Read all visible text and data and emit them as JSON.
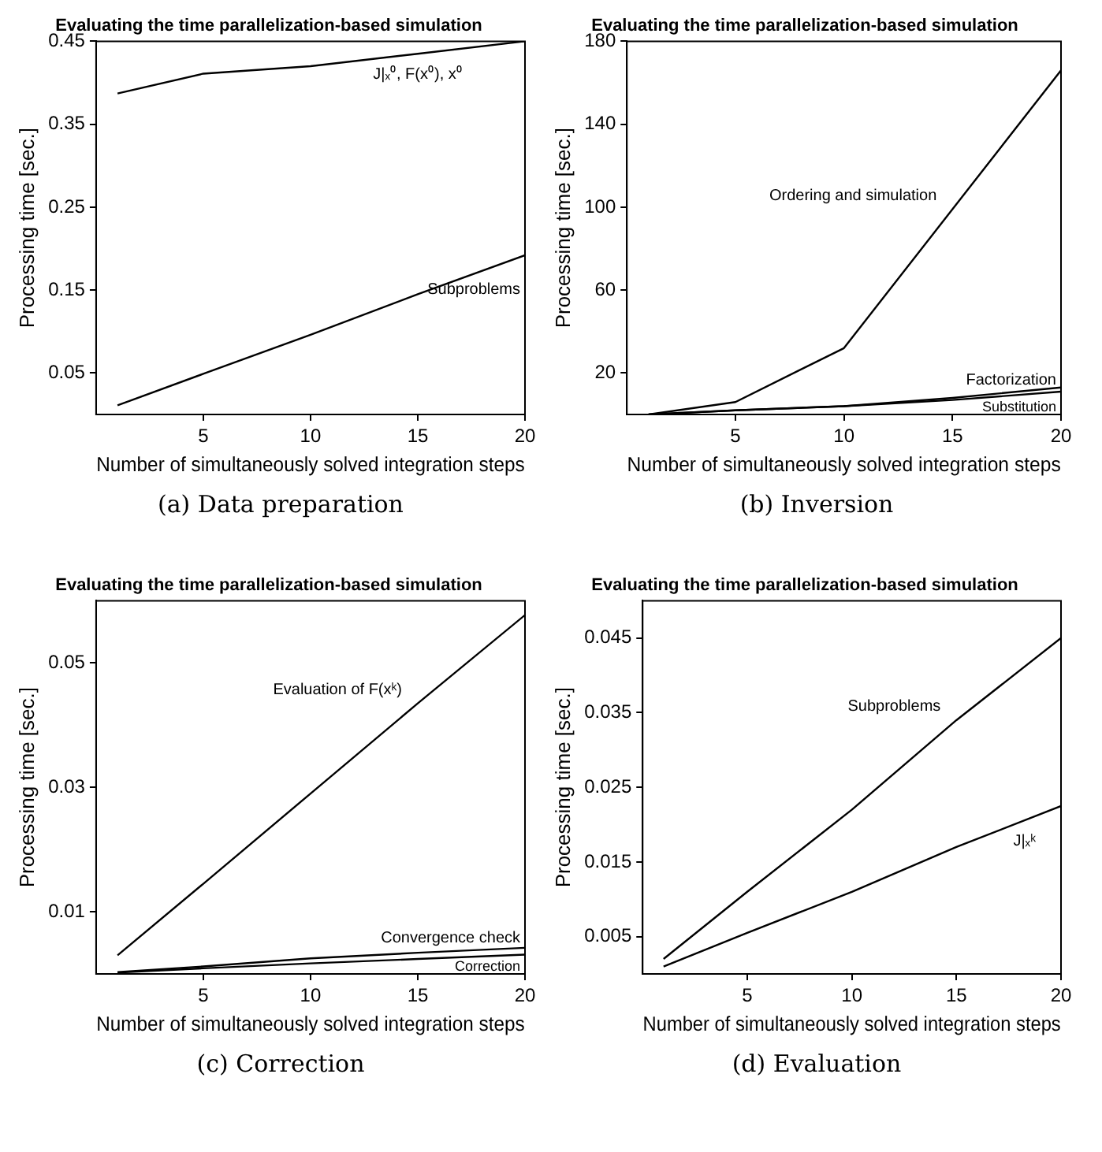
{
  "chart_data": [
    {
      "type": "line",
      "title": "Evaluating the time parallelization-based simulation",
      "xlabel": "Number of simultaneously solved integration steps",
      "ylabel": "Processing time [sec.]",
      "annotations": [
        "(a) Data preparation"
      ],
      "x": [
        1,
        5,
        10,
        15,
        20
      ],
      "xlim": [
        0,
        20
      ],
      "xticks": [
        5,
        10,
        15,
        20
      ],
      "ylim": [
        0,
        0.45
      ],
      "yticks": [
        0.05,
        0.15,
        0.25,
        0.35,
        0.45
      ],
      "grid": false,
      "legend": false,
      "series": [
        {
          "name": "J|ₓ⁰, F(x⁰), x⁰",
          "color": "#000000",
          "values": [
            0.387,
            0.411,
            0.42,
            0.435,
            0.45
          ]
        },
        {
          "name": "Subproblems",
          "color": "#000000",
          "values": [
            0.011,
            0.049,
            0.096,
            0.145,
            0.192
          ]
        }
      ]
    },
    {
      "type": "line",
      "title": "Evaluating the time parallelization-based simulation",
      "xlabel": "Number of simultaneously solved integration steps",
      "ylabel": "Processing time [sec.]",
      "annotations": [
        "(b) Inversion"
      ],
      "x": [
        1,
        5,
        10,
        15,
        20
      ],
      "xlim": [
        0,
        20
      ],
      "xticks": [
        5,
        10,
        15,
        20
      ],
      "ylim": [
        0,
        180
      ],
      "yticks": [
        20,
        60,
        100,
        140,
        180
      ],
      "grid": false,
      "legend": false,
      "series": [
        {
          "name": "Ordering and simulation",
          "color": "#000000",
          "values": [
            0,
            6,
            32,
            99,
            166
          ]
        },
        {
          "name": "Factorization",
          "color": "#000000",
          "values": [
            0,
            2,
            4,
            8,
            13
          ]
        },
        {
          "name": "Substitution",
          "color": "#000000",
          "values": [
            0,
            2,
            4,
            7,
            11
          ]
        }
      ]
    },
    {
      "type": "line",
      "title": "Evaluating the time parallelization-based simulation",
      "xlabel": "Number of simultaneously solved integration steps",
      "ylabel": "Processing time [sec.]",
      "annotations": [
        "(c) Correction"
      ],
      "x": [
        1,
        5,
        10,
        15,
        20
      ],
      "xlim": [
        0,
        20
      ],
      "xticks": [
        5,
        10,
        15,
        20
      ],
      "ylim": [
        0,
        0.06
      ],
      "yticks": [
        0.01,
        0.03,
        0.05
      ],
      "grid": false,
      "legend": false,
      "series": [
        {
          "name": "Evaluation of F(xᵏ)",
          "color": "#000000",
          "values": [
            0.003,
            0.0145,
            0.029,
            0.0435,
            0.0577
          ]
        },
        {
          "name": "Convergence check",
          "color": "#000000",
          "values": [
            0.0003,
            0.0012,
            0.0025,
            0.0034,
            0.0042
          ]
        },
        {
          "name": "Correction",
          "color": "#000000",
          "values": [
            0.0002,
            0.0009,
            0.0017,
            0.0024,
            0.0031
          ]
        }
      ]
    },
    {
      "type": "line",
      "title": "Evaluating the time parallelization-based simulation",
      "xlabel": "Number of simultaneously solved integration steps",
      "ylabel": "Processing time [sec.]",
      "annotations": [
        "(d) Evaluation"
      ],
      "x": [
        1,
        5,
        10,
        15,
        20
      ],
      "xlim": [
        0,
        20
      ],
      "xticks": [
        5,
        10,
        15,
        20
      ],
      "ylim": [
        0,
        0.05
      ],
      "yticks": [
        0.005,
        0.015,
        0.025,
        0.035,
        0.045
      ],
      "grid": false,
      "legend": false,
      "series": [
        {
          "name": "Subproblems",
          "color": "#000000",
          "values": [
            0.002,
            0.011,
            0.022,
            0.034,
            0.045
          ]
        },
        {
          "name": "J|ₓᵏ",
          "color": "#000000",
          "values": [
            0.001,
            0.0055,
            0.011,
            0.017,
            0.0225
          ]
        }
      ]
    }
  ]
}
